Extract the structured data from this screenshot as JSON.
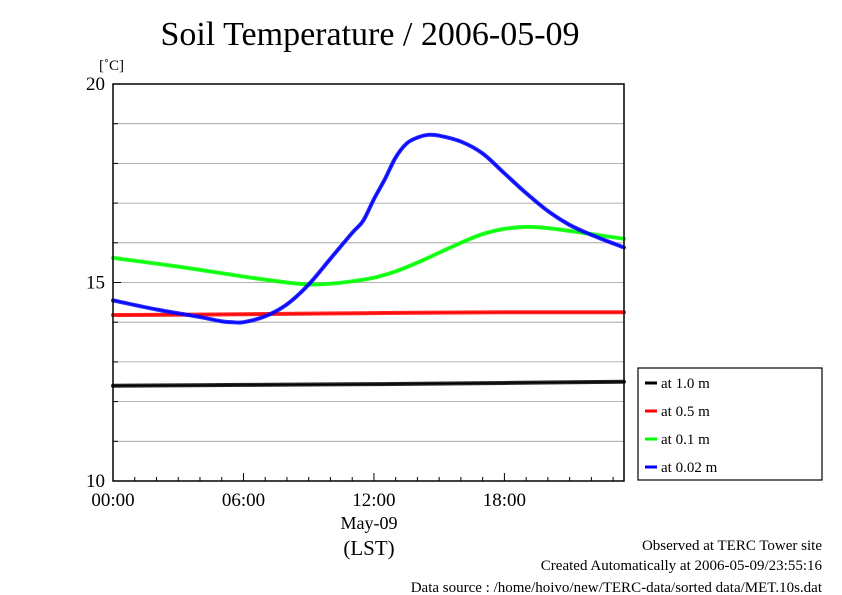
{
  "chart_data": {
    "type": "line",
    "title": "Soil Temperature / 2006-05-09",
    "y_unit": "[˚C]",
    "ylim": [
      10,
      20
    ],
    "y_ticks": [
      "10",
      "15",
      "20"
    ],
    "y_minor_step": 1,
    "xlim": [
      0,
      23.5
    ],
    "x_ticks": [
      {
        "value": 0,
        "label": "00:00"
      },
      {
        "value": 6,
        "label": "06:00"
      },
      {
        "value": 12,
        "label": "12:00"
      },
      {
        "value": 18,
        "label": "18:00"
      }
    ],
    "x_date_label": "May-09",
    "x_label": "(LST)",
    "grid": true,
    "legend_position": "right",
    "series": [
      {
        "name": "at 1.0 m",
        "color": "#000000",
        "x": [
          0,
          6,
          12,
          18,
          23.5
        ],
        "y": [
          12.4,
          12.42,
          12.44,
          12.47,
          12.5
        ]
      },
      {
        "name": "at 0.5 m",
        "color": "#ff0000",
        "x": [
          0,
          6,
          12,
          18,
          23.5
        ],
        "y": [
          14.18,
          14.2,
          14.23,
          14.25,
          14.25
        ]
      },
      {
        "name": "at 0.1 m",
        "color": "#00ff00",
        "x": [
          0,
          3,
          6,
          8,
          9,
          10,
          11,
          12,
          13,
          14,
          15,
          16,
          17,
          18,
          19,
          20,
          21,
          22,
          23.5
        ],
        "y": [
          15.62,
          15.4,
          15.15,
          15.0,
          14.95,
          14.97,
          15.03,
          15.12,
          15.28,
          15.5,
          15.75,
          16.0,
          16.22,
          16.35,
          16.4,
          16.37,
          16.3,
          16.22,
          16.1
        ]
      },
      {
        "name": "at 0.02 m",
        "color": "#0000ff",
        "x": [
          0,
          2,
          4,
          5,
          5.5,
          6,
          7,
          8,
          9,
          10,
          11,
          11.5,
          12,
          12.5,
          13,
          13.5,
          14,
          14.5,
          15,
          16,
          17,
          18,
          19,
          20,
          21,
          22,
          23.5
        ],
        "y": [
          14.55,
          14.32,
          14.13,
          14.02,
          14.0,
          14.0,
          14.15,
          14.45,
          14.95,
          15.6,
          16.25,
          16.55,
          17.1,
          17.6,
          18.15,
          18.5,
          18.65,
          18.72,
          18.7,
          18.55,
          18.25,
          17.75,
          17.25,
          16.8,
          16.45,
          16.2,
          15.88
        ]
      }
    ]
  },
  "footer": {
    "line1": "Observed at TERC Tower site",
    "line2": "Created Automatically at 2006-05-09/23:55:16",
    "line3": "Data source : /home/hoivo/new/TERC-data/sorted  data/MET.10s.dat"
  }
}
